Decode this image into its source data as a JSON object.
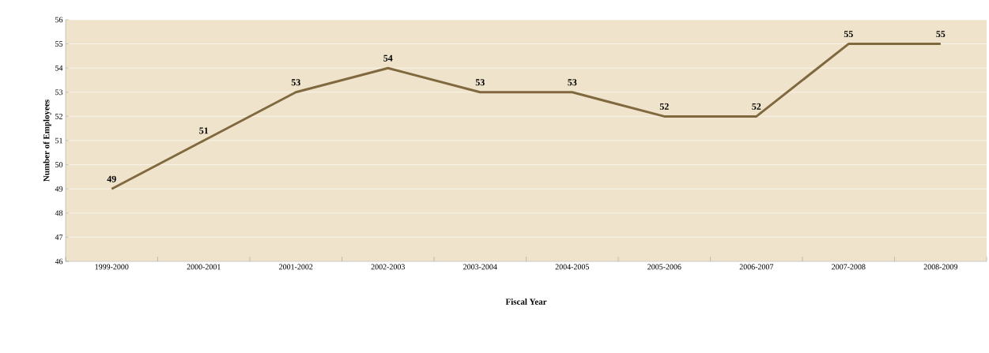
{
  "chart_data": {
    "type": "line",
    "xlabel": "Fiscal Year",
    "ylabel": "Number of Employees",
    "categories": [
      "1999-2000",
      "2000-2001",
      "2001-2002",
      "2002-2003",
      "2003-2004",
      "2004-2005",
      "2005-2006",
      "2006-2007",
      "2007-2008",
      "2008-2009"
    ],
    "series": [
      {
        "color": "#80683f",
        "values": [
          49,
          51,
          53,
          54,
          53,
          53,
          52,
          52,
          55,
          55
        ]
      }
    ],
    "ylim": [
      46,
      56
    ],
    "yticks": [
      46,
      47,
      48,
      49,
      50,
      51,
      52,
      53,
      54,
      55,
      56
    ],
    "grid": "y",
    "data_labels": true,
    "marker": "none",
    "line_style": "solid"
  }
}
